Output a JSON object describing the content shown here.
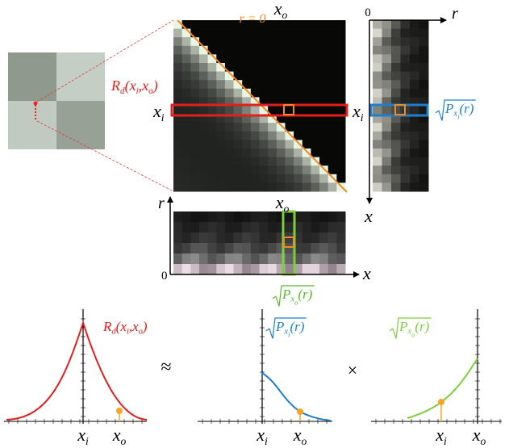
{
  "matrix": {
    "diagonal_label": "r = 0",
    "column_label": [
      "x",
      "o"
    ],
    "row_label": [
      "x",
      "i"
    ],
    "kernel_label": [
      "R",
      "d",
      "(x",
      "i",
      ",x",
      "o",
      ")"
    ]
  },
  "row_panel": {
    "origin": "0",
    "r_axis": "r",
    "x_axis": "x",
    "row_label": [
      "x",
      "i"
    ],
    "profile_label": [
      "P",
      "x",
      "i",
      "(r)"
    ]
  },
  "column_panel": {
    "origin": "0",
    "r_axis": "r",
    "x_axis": "x",
    "column_label": [
      "x",
      "o"
    ],
    "profile_label": [
      "P",
      "x",
      "o",
      "(r)"
    ]
  },
  "plots": [
    {
      "label": [
        "R",
        "d",
        "(x",
        "i",
        ",x",
        "o",
        ")"
      ],
      "x_labels": [
        [
          "x",
          "i"
        ],
        [
          "x",
          "o"
        ]
      ]
    },
    {
      "label": [
        "P",
        "x",
        "i",
        "(r)"
      ],
      "x_labels": [
        [
          "x",
          "i"
        ],
        [
          "x",
          "o"
        ]
      ]
    },
    {
      "label": [
        "P",
        "x",
        "o",
        "(r)"
      ],
      "x_labels": [
        [
          "x",
          "i"
        ],
        [
          "x",
          "o"
        ]
      ]
    }
  ],
  "operators": [
    "≈",
    "×"
  ]
}
